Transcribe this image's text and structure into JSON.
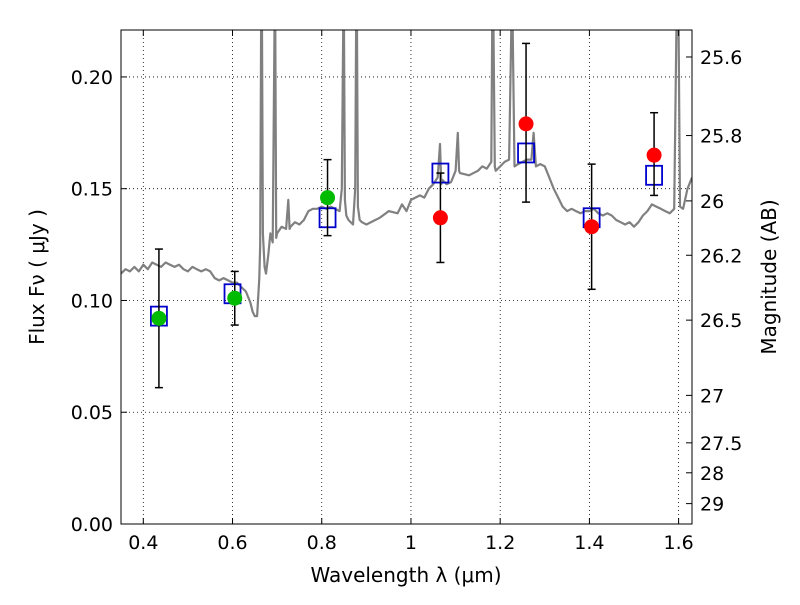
{
  "chart_data": {
    "type": "scatter",
    "title": "",
    "xlabel": "Wavelength  λ (μm)",
    "ylabel": "Flux  Fν  ( μJy )",
    "y2label": "Magnitude (AB)",
    "xlim": [
      0.35,
      1.63
    ],
    "ylim": [
      0.0,
      0.221
    ],
    "grid": true,
    "x_ticks": [
      0.4,
      0.6,
      0.8,
      1.0,
      1.2,
      1.4,
      1.6
    ],
    "x_tick_labels": [
      "0.4",
      "0.6",
      "0.8",
      "1",
      "1.2",
      "1.4",
      "1.6"
    ],
    "y_ticks": [
      0.0,
      0.05,
      0.1,
      0.15,
      0.2
    ],
    "y_tick_labels": [
      "0.00",
      "0.05",
      "0.10",
      "0.15",
      "0.20"
    ],
    "y2_ticks": [
      {
        "value": 25.6,
        "label": "25.6"
      },
      {
        "value": 25.8,
        "label": "25.8"
      },
      {
        "value": 26.0,
        "label": "26"
      },
      {
        "value": 26.2,
        "label": "26.2"
      },
      {
        "value": 26.5,
        "label": "26.5"
      },
      {
        "value": 27.0,
        "label": "27"
      },
      {
        "value": 27.5,
        "label": "27.5"
      },
      {
        "value": 28.0,
        "label": "28"
      },
      {
        "value": 29.0,
        "label": "29"
      }
    ],
    "series": [
      {
        "type": "line",
        "color": "#808080",
        "clip_top": 0.221,
        "points": [
          [
            0.35,
            0.112
          ],
          [
            0.36,
            0.114
          ],
          [
            0.37,
            0.113
          ],
          [
            0.38,
            0.115
          ],
          [
            0.39,
            0.113
          ],
          [
            0.4,
            0.116
          ],
          [
            0.41,
            0.114
          ],
          [
            0.42,
            0.117
          ],
          [
            0.43,
            0.116
          ],
          [
            0.44,
            0.115
          ],
          [
            0.45,
            0.117
          ],
          [
            0.46,
            0.116
          ],
          [
            0.47,
            0.115
          ],
          [
            0.48,
            0.116
          ],
          [
            0.49,
            0.114
          ],
          [
            0.5,
            0.113
          ],
          [
            0.51,
            0.115
          ],
          [
            0.52,
            0.114
          ],
          [
            0.53,
            0.113
          ],
          [
            0.54,
            0.114
          ],
          [
            0.55,
            0.113
          ],
          [
            0.56,
            0.11
          ],
          [
            0.57,
            0.109
          ],
          [
            0.58,
            0.11
          ],
          [
            0.59,
            0.109
          ],
          [
            0.6,
            0.108
          ],
          [
            0.61,
            0.108
          ],
          [
            0.62,
            0.106
          ],
          [
            0.63,
            0.104
          ],
          [
            0.64,
            0.099
          ],
          [
            0.645,
            0.095
          ],
          [
            0.65,
            0.093
          ],
          [
            0.655,
            0.093
          ],
          [
            0.66,
            0.11
          ],
          [
            0.662,
            0.125
          ],
          [
            0.664,
            0.221
          ],
          [
            0.666,
            0.221
          ],
          [
            0.668,
            0.13
          ],
          [
            0.672,
            0.115
          ],
          [
            0.675,
            0.112
          ],
          [
            0.68,
            0.12
          ],
          [
            0.685,
            0.13
          ],
          [
            0.69,
            0.126
          ],
          [
            0.694,
            0.221
          ],
          [
            0.696,
            0.221
          ],
          [
            0.698,
            0.128
          ],
          [
            0.7,
            0.13
          ],
          [
            0.71,
            0.133
          ],
          [
            0.72,
            0.132
          ],
          [
            0.725,
            0.145
          ],
          [
            0.728,
            0.132
          ],
          [
            0.73,
            0.133
          ],
          [
            0.74,
            0.135
          ],
          [
            0.75,
            0.134
          ],
          [
            0.76,
            0.136
          ],
          [
            0.77,
            0.14
          ],
          [
            0.78,
            0.141
          ],
          [
            0.79,
            0.141
          ],
          [
            0.8,
            0.142
          ],
          [
            0.81,
            0.141
          ],
          [
            0.82,
            0.142
          ],
          [
            0.83,
            0.141
          ],
          [
            0.84,
            0.14
          ],
          [
            0.845,
            0.15
          ],
          [
            0.848,
            0.221
          ],
          [
            0.85,
            0.221
          ],
          [
            0.852,
            0.145
          ],
          [
            0.855,
            0.138
          ],
          [
            0.86,
            0.136
          ],
          [
            0.87,
            0.134
          ],
          [
            0.875,
            0.15
          ],
          [
            0.877,
            0.221
          ],
          [
            0.879,
            0.221
          ],
          [
            0.881,
            0.142
          ],
          [
            0.885,
            0.136
          ],
          [
            0.89,
            0.135
          ],
          [
            0.9,
            0.134
          ],
          [
            0.92,
            0.136
          ],
          [
            0.93,
            0.137
          ],
          [
            0.95,
            0.14
          ],
          [
            0.97,
            0.139
          ],
          [
            0.98,
            0.143
          ],
          [
            0.99,
            0.14
          ],
          [
            1.0,
            0.145
          ],
          [
            1.01,
            0.146
          ],
          [
            1.02,
            0.147
          ],
          [
            1.03,
            0.146
          ],
          [
            1.04,
            0.15
          ],
          [
            1.05,
            0.152
          ],
          [
            1.06,
            0.155
          ],
          [
            1.065,
            0.17
          ],
          [
            1.068,
            0.152
          ],
          [
            1.07,
            0.154
          ],
          [
            1.08,
            0.152
          ],
          [
            1.09,
            0.153
          ],
          [
            1.1,
            0.158
          ],
          [
            1.105,
            0.175
          ],
          [
            1.108,
            0.158
          ],
          [
            1.11,
            0.157
          ],
          [
            1.13,
            0.156
          ],
          [
            1.15,
            0.158
          ],
          [
            1.16,
            0.16
          ],
          [
            1.17,
            0.159
          ],
          [
            1.18,
            0.162
          ],
          [
            1.182,
            0.221
          ],
          [
            1.185,
            0.221
          ],
          [
            1.188,
            0.16
          ],
          [
            1.19,
            0.158
          ],
          [
            1.2,
            0.16
          ],
          [
            1.21,
            0.162
          ],
          [
            1.22,
            0.163
          ],
          [
            1.225,
            0.221
          ],
          [
            1.228,
            0.221
          ],
          [
            1.232,
            0.16
          ],
          [
            1.24,
            0.161
          ],
          [
            1.25,
            0.162
          ],
          [
            1.26,
            0.163
          ],
          [
            1.27,
            0.163
          ],
          [
            1.275,
            0.175
          ],
          [
            1.28,
            0.16
          ],
          [
            1.29,
            0.161
          ],
          [
            1.3,
            0.16
          ],
          [
            1.31,
            0.155
          ],
          [
            1.32,
            0.15
          ],
          [
            1.33,
            0.146
          ],
          [
            1.34,
            0.142
          ],
          [
            1.35,
            0.14
          ],
          [
            1.36,
            0.141
          ],
          [
            1.37,
            0.14
          ],
          [
            1.38,
            0.139
          ],
          [
            1.39,
            0.14
          ],
          [
            1.4,
            0.14
          ],
          [
            1.41,
            0.141
          ],
          [
            1.42,
            0.139
          ],
          [
            1.43,
            0.138
          ],
          [
            1.44,
            0.139
          ],
          [
            1.45,
            0.138
          ],
          [
            1.46,
            0.136
          ],
          [
            1.47,
            0.135
          ],
          [
            1.48,
            0.134
          ],
          [
            1.49,
            0.135
          ],
          [
            1.5,
            0.133
          ],
          [
            1.51,
            0.135
          ],
          [
            1.52,
            0.138
          ],
          [
            1.53,
            0.14
          ],
          [
            1.54,
            0.143
          ],
          [
            1.55,
            0.142
          ],
          [
            1.56,
            0.141
          ],
          [
            1.57,
            0.14
          ],
          [
            1.58,
            0.139
          ],
          [
            1.59,
            0.141
          ],
          [
            1.595,
            0.221
          ],
          [
            1.6,
            0.221
          ],
          [
            1.603,
            0.142
          ],
          [
            1.61,
            0.141
          ],
          [
            1.62,
            0.15
          ],
          [
            1.63,
            0.155
          ]
        ]
      },
      {
        "type": "marker",
        "marker": "open-square",
        "color": "#0000cc",
        "points": [
          [
            0.435,
            0.093
          ],
          [
            0.6,
            0.103
          ],
          [
            0.813,
            0.137
          ],
          [
            1.066,
            0.157
          ],
          [
            1.258,
            0.166
          ],
          [
            1.405,
            0.137
          ],
          [
            1.545,
            0.156
          ]
        ]
      },
      {
        "type": "marker",
        "marker": "filled-circle",
        "color": "#00bb00",
        "points": [
          {
            "x": 0.435,
            "y": 0.092,
            "err_low": 0.061,
            "err_high": 0.123
          },
          {
            "x": 0.605,
            "y": 0.101,
            "err_low": 0.089,
            "err_high": 0.113
          },
          {
            "x": 0.813,
            "y": 0.146,
            "err_low": 0.129,
            "err_high": 0.163
          }
        ]
      },
      {
        "type": "marker",
        "marker": "filled-circle",
        "color": "#ff0000",
        "points": [
          {
            "x": 1.066,
            "y": 0.137,
            "err_low": 0.117,
            "err_high": 0.157
          },
          {
            "x": 1.258,
            "y": 0.179,
            "err_low": 0.144,
            "err_high": 0.215
          },
          {
            "x": 1.405,
            "y": 0.133,
            "err_low": 0.105,
            "err_high": 0.161
          },
          {
            "x": 1.545,
            "y": 0.165,
            "err_low": 0.147,
            "err_high": 0.184
          }
        ]
      }
    ]
  }
}
